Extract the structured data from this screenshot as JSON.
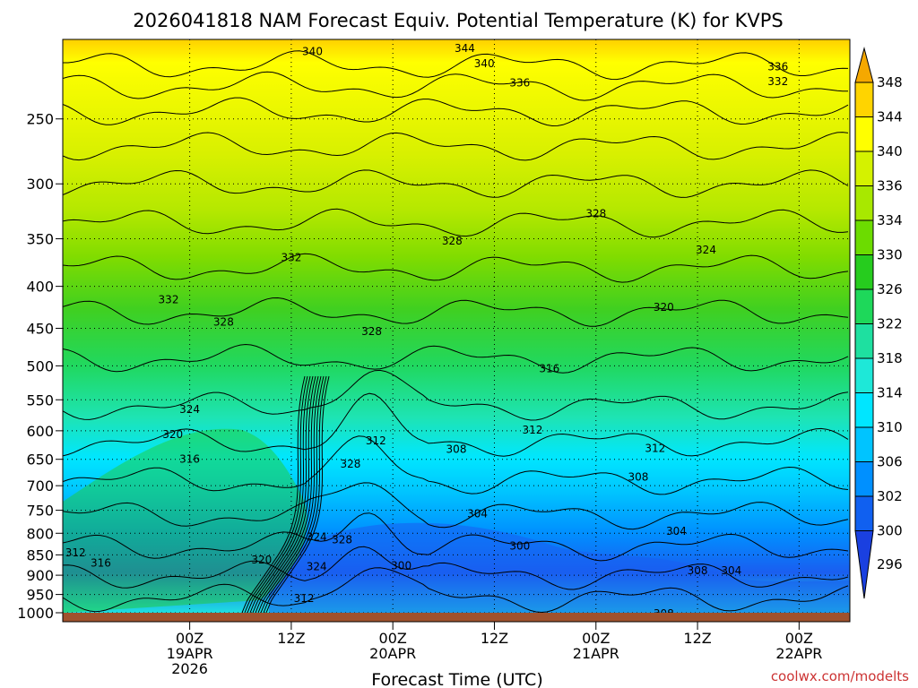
{
  "chart_data": {
    "type": "contour",
    "title": "2026041818 NAM Forecast Equiv. Potential Temperature (K) for KVPS",
    "xlabel": "Forecast Time (UTC)",
    "ylabel": "",
    "y_axis": {
      "scale": "log",
      "reversed": true,
      "range": [
        200,
        1000
      ],
      "ticks": [
        250,
        300,
        350,
        400,
        450,
        500,
        550,
        600,
        650,
        700,
        750,
        800,
        850,
        900,
        950,
        1000
      ]
    },
    "x_axis": {
      "range_hours": [
        -9,
        84
      ],
      "ticks": [
        {
          "hour": 6,
          "lines": [
            "00Z",
            "19APR",
            "2026"
          ]
        },
        {
          "hour": 18,
          "lines": [
            "12Z"
          ]
        },
        {
          "hour": 30,
          "lines": [
            "00Z",
            "20APR"
          ]
        },
        {
          "hour": 42,
          "lines": [
            "12Z"
          ]
        },
        {
          "hour": 54,
          "lines": [
            "00Z",
            "21APR"
          ]
        },
        {
          "hour": 66,
          "lines": [
            "12Z"
          ]
        },
        {
          "hour": 78,
          "lines": [
            "00Z",
            "22APR"
          ]
        }
      ]
    },
    "colorbar": {
      "labels": [
        "348",
        "344",
        "340",
        "336",
        "334",
        "330",
        "326",
        "322",
        "318",
        "314",
        "310",
        "306",
        "302",
        "300",
        "296"
      ],
      "colors": [
        "#f5a800",
        "#ffd400",
        "#ffff00",
        "#d4f200",
        "#a8e800",
        "#6cdc00",
        "#26cc1e",
        "#1ed85a",
        "#1ee0a0",
        "#1ee8d8",
        "#00e6ff",
        "#00c4ff",
        "#0090ff",
        "#1060f0",
        "#1a40e0"
      ],
      "arrows": "both"
    },
    "contour_labels": [
      {
        "text": "344",
        "t": 38.5,
        "p": 205
      },
      {
        "text": "340",
        "t": 40.8,
        "p": 214
      },
      {
        "text": "340",
        "t": 20.5,
        "p": 207
      },
      {
        "text": "336",
        "t": 75.5,
        "p": 216
      },
      {
        "text": "336",
        "t": 45,
        "p": 226
      },
      {
        "text": "332",
        "t": 75.5,
        "p": 225
      },
      {
        "text": "328",
        "t": 54,
        "p": 326
      },
      {
        "text": "328",
        "t": 37,
        "p": 352
      },
      {
        "text": "324",
        "t": 67,
        "p": 361
      },
      {
        "text": "332",
        "t": 18,
        "p": 369
      },
      {
        "text": "332",
        "t": 3.5,
        "p": 415
      },
      {
        "text": "320",
        "t": 62,
        "p": 424
      },
      {
        "text": "328",
        "t": 10,
        "p": 442
      },
      {
        "text": "328",
        "t": 27.5,
        "p": 454
      },
      {
        "text": "316",
        "t": 48.5,
        "p": 504
      },
      {
        "text": "324",
        "t": 6,
        "p": 565
      },
      {
        "text": "312",
        "t": 46.5,
        "p": 599
      },
      {
        "text": "320",
        "t": 4,
        "p": 606
      },
      {
        "text": "312",
        "t": 28,
        "p": 617
      },
      {
        "text": "308",
        "t": 37.5,
        "p": 632
      },
      {
        "text": "312",
        "t": 61,
        "p": 630
      },
      {
        "text": "316",
        "t": 6,
        "p": 650
      },
      {
        "text": "328",
        "t": 25,
        "p": 659
      },
      {
        "text": "308",
        "t": 59,
        "p": 683
      },
      {
        "text": "304",
        "t": 40,
        "p": 757
      },
      {
        "text": "304",
        "t": 63.5,
        "p": 795
      },
      {
        "text": "324",
        "t": 21,
        "p": 809
      },
      {
        "text": "328",
        "t": 24,
        "p": 815
      },
      {
        "text": "300",
        "t": 45,
        "p": 829
      },
      {
        "text": "312",
        "t": -7.5,
        "p": 845
      },
      {
        "text": "320",
        "t": 14.5,
        "p": 862
      },
      {
        "text": "316",
        "t": -4.5,
        "p": 870
      },
      {
        "text": "300",
        "t": 31,
        "p": 876
      },
      {
        "text": "324",
        "t": 21,
        "p": 879
      },
      {
        "text": "308",
        "t": 66,
        "p": 888
      },
      {
        "text": "304",
        "t": 70,
        "p": 888
      },
      {
        "text": "312",
        "t": 19.5,
        "p": 961
      },
      {
        "text": "308",
        "t": 62,
        "p": 1002
      }
    ],
    "colors": {
      "ground": "#a0522d",
      "contour": "#000000"
    }
  },
  "credit": "coolwx.com/modelts"
}
